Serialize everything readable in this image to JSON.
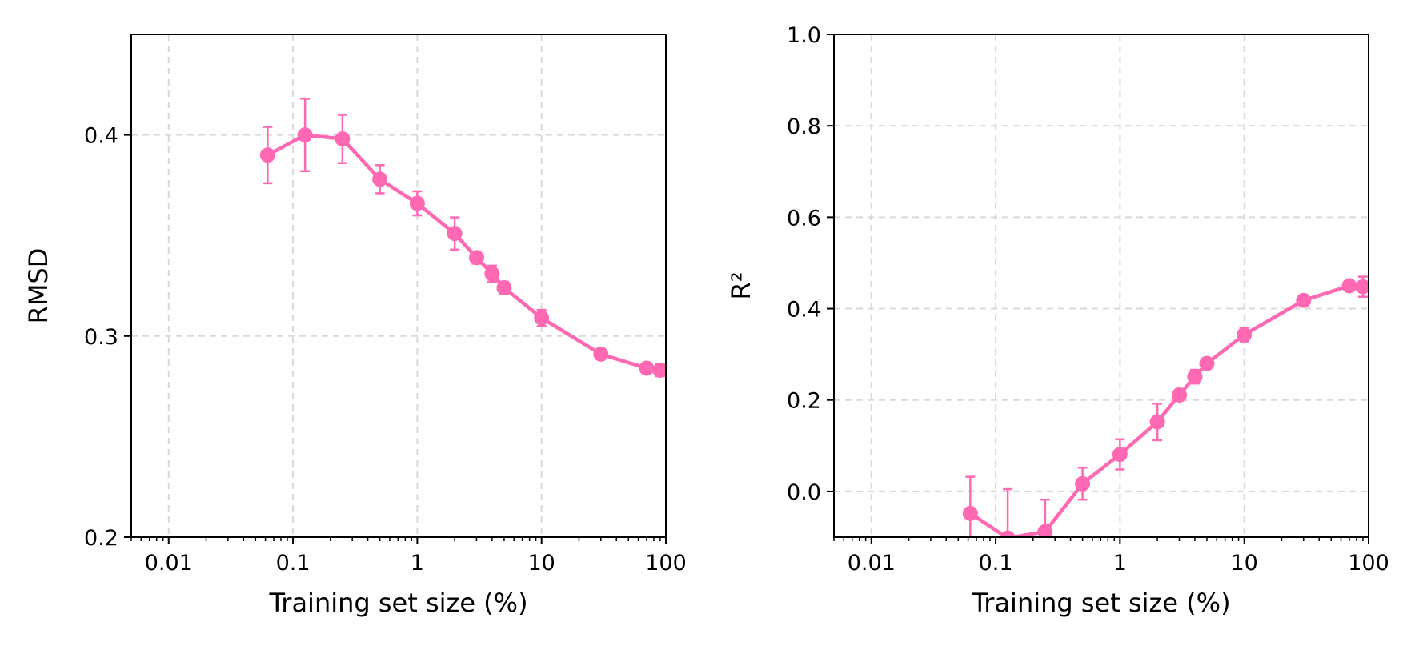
{
  "chart_data": [
    {
      "type": "line",
      "title": "",
      "xlabel": "Training set size (%)",
      "ylabel": "RMSD",
      "xscale": "log",
      "xlim": [
        0.005,
        100
      ],
      "ylim": [
        0.2,
        0.45
      ],
      "xticks": [
        {
          "value": 0.01,
          "label": "0.01"
        },
        {
          "value": 0.1,
          "label": "0.1"
        },
        {
          "value": 1,
          "label": "1"
        },
        {
          "value": 10,
          "label": "10"
        },
        {
          "value": 100,
          "label": "100"
        }
      ],
      "yticks": [
        {
          "value": 0.2,
          "label": "0.2"
        },
        {
          "value": 0.3,
          "label": "0.3"
        },
        {
          "value": 0.4,
          "label": "0.4"
        }
      ],
      "grid": true,
      "color": "#ff69b4",
      "series": [
        {
          "x": [
            0.0625,
            0.125,
            0.25,
            0.5,
            1,
            2,
            3,
            4,
            5,
            10,
            30,
            70,
            90
          ],
          "y": [
            0.39,
            0.4,
            0.398,
            0.378,
            0.366,
            0.351,
            0.339,
            0.331,
            0.324,
            0.309,
            0.291,
            0.284,
            0.283
          ],
          "err": [
            0.014,
            0.018,
            0.012,
            0.007,
            0.006,
            0.008,
            0.003,
            0.004,
            0.003,
            0.004,
            0.002,
            0.002,
            0.003
          ]
        }
      ]
    },
    {
      "type": "line",
      "title": "",
      "xlabel": "Training set size (%)",
      "ylabel": "R²",
      "xscale": "log",
      "xlim": [
        0.005,
        100
      ],
      "ylim": [
        -0.1,
        1.0
      ],
      "xticks": [
        {
          "value": 0.01,
          "label": "0.01"
        },
        {
          "value": 0.1,
          "label": "0.1"
        },
        {
          "value": 1,
          "label": "1"
        },
        {
          "value": 10,
          "label": "10"
        },
        {
          "value": 100,
          "label": "100"
        }
      ],
      "yticks": [
        {
          "value": 0.0,
          "label": "0.0"
        },
        {
          "value": 0.2,
          "label": "0.2"
        },
        {
          "value": 0.4,
          "label": "0.4"
        },
        {
          "value": 0.6,
          "label": "0.6"
        },
        {
          "value": 0.8,
          "label": "0.8"
        },
        {
          "value": 1.0,
          "label": "1.0"
        }
      ],
      "grid": true,
      "color": "#ff69b4",
      "series": [
        {
          "x": [
            0.0625,
            0.125,
            0.25,
            0.5,
            1,
            2,
            3,
            4,
            5,
            10,
            30,
            70,
            90
          ],
          "y": [
            -0.048,
            -0.102,
            -0.088,
            0.017,
            0.081,
            0.152,
            0.211,
            0.251,
            0.28,
            0.343,
            0.418,
            0.45,
            0.448
          ],
          "err": [
            0.08,
            0.107,
            0.07,
            0.035,
            0.033,
            0.04,
            0.012,
            0.015,
            0.008,
            0.015,
            0.008,
            0.01,
            0.022
          ]
        }
      ]
    }
  ]
}
